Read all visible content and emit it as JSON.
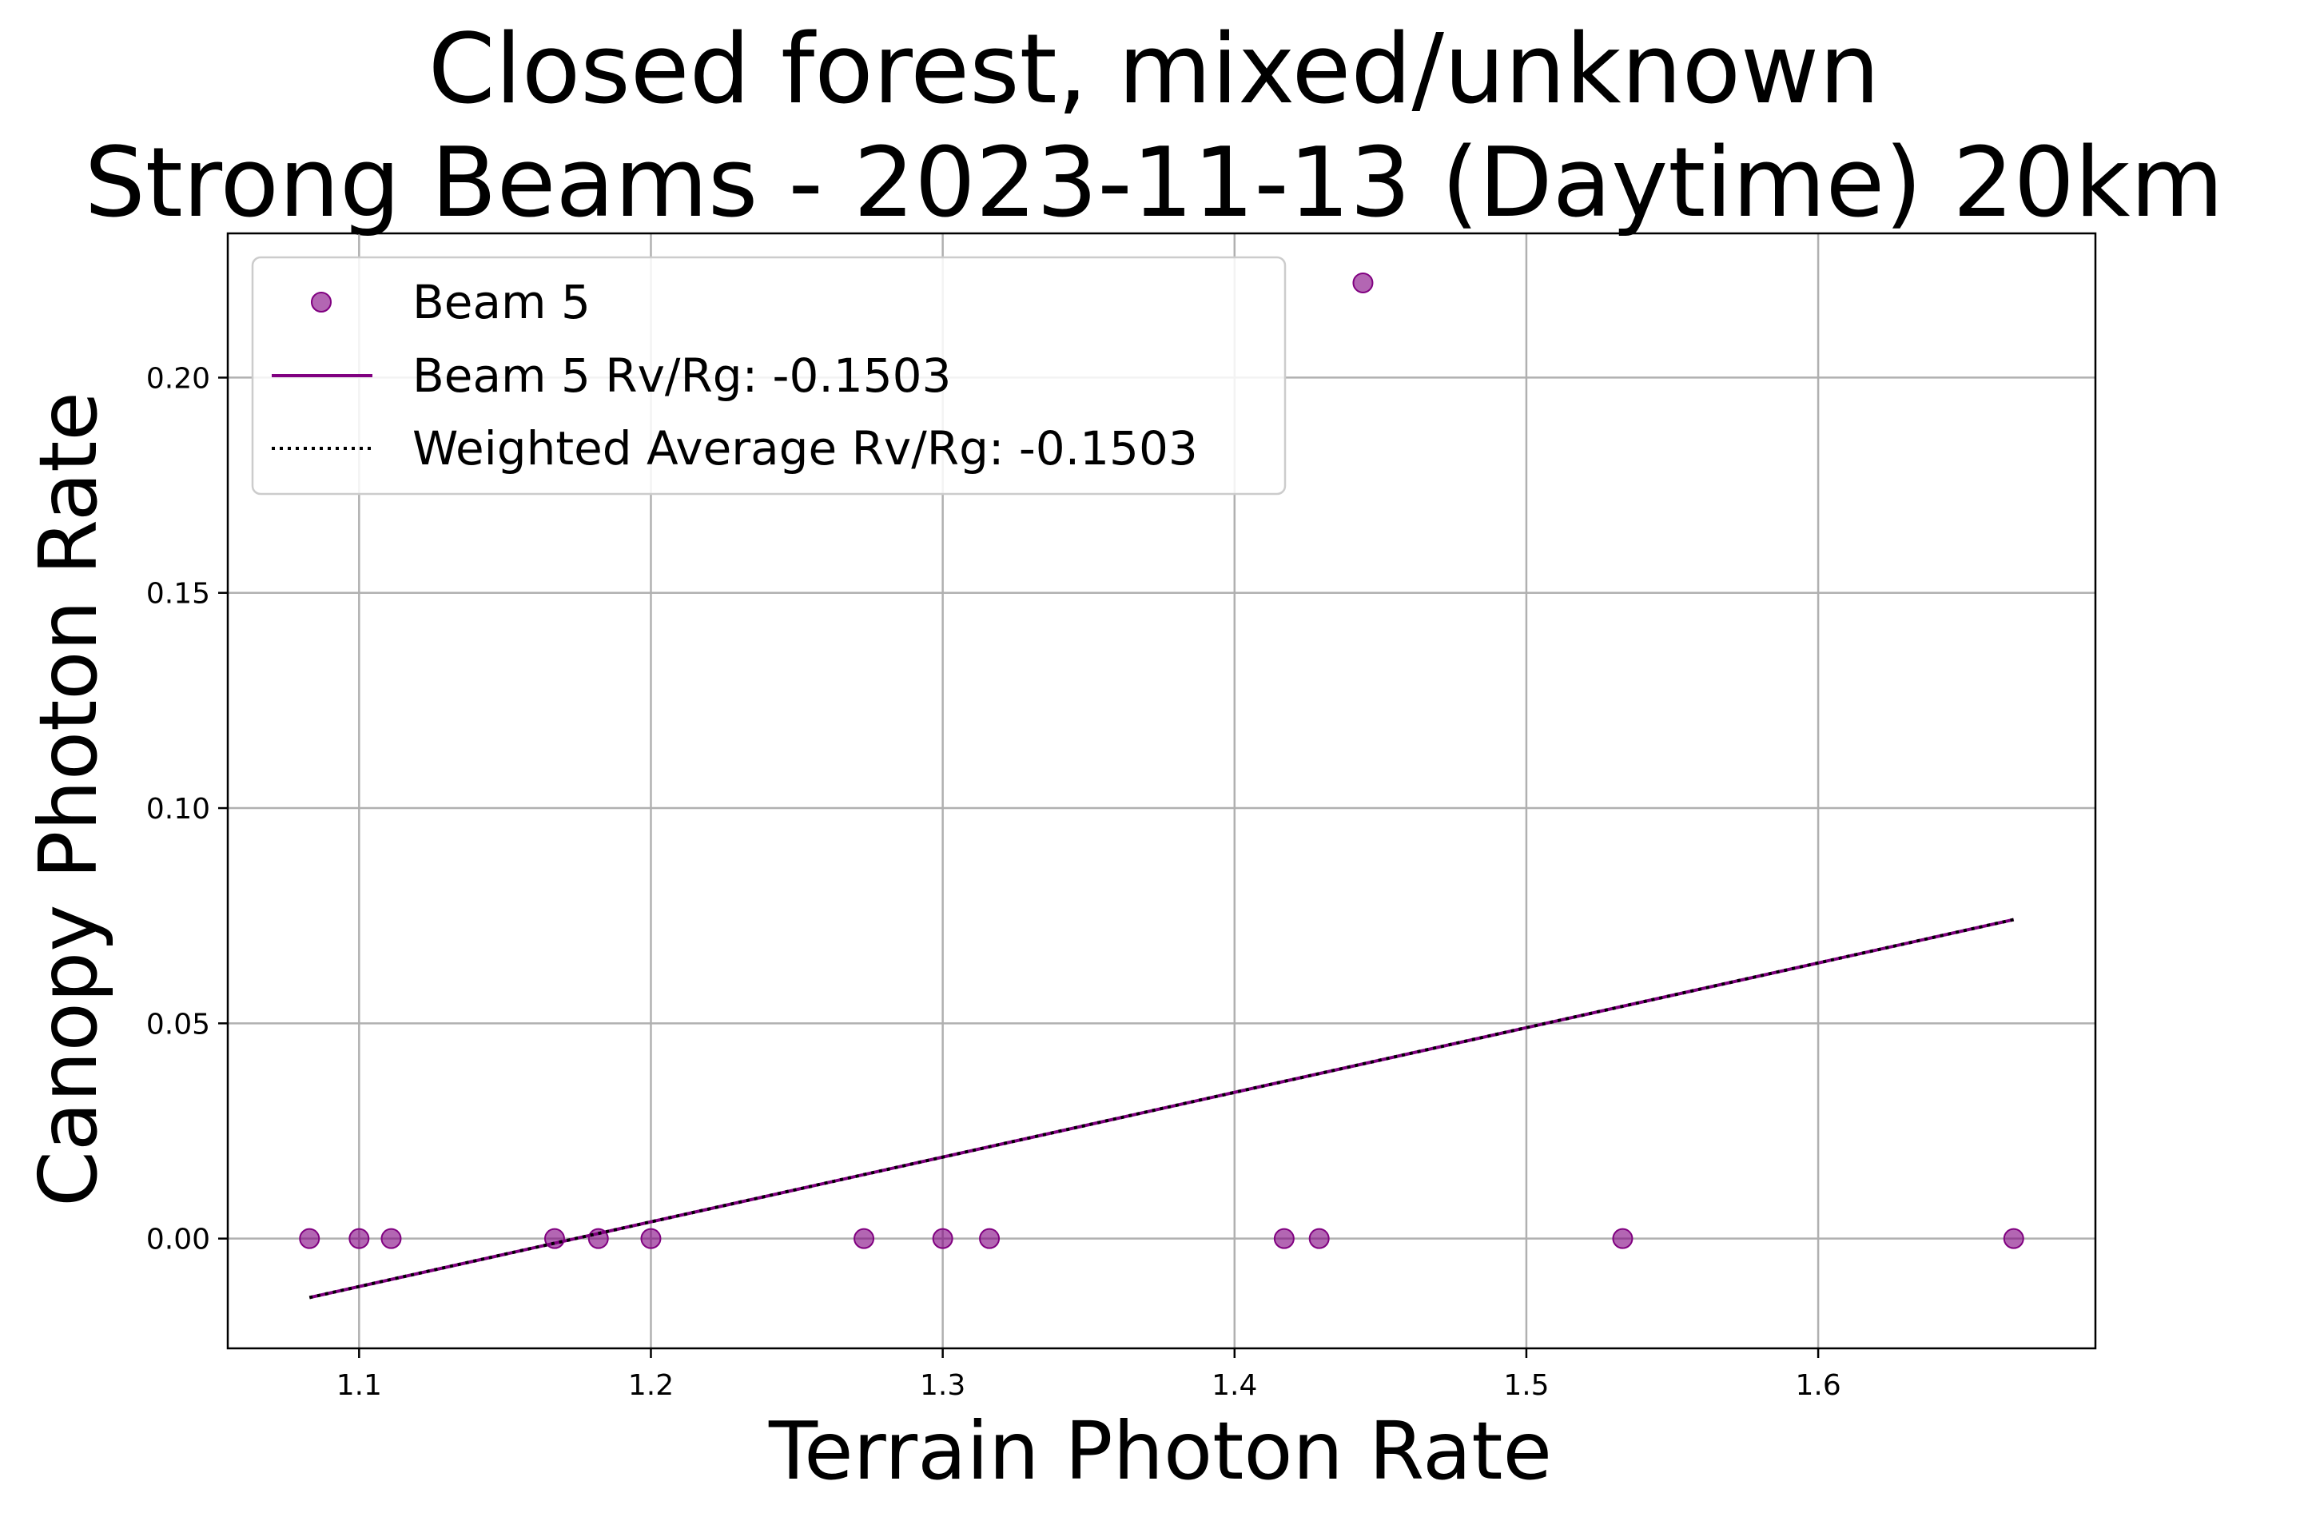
{
  "chart_data": {
    "type": "scatter",
    "title": "Closed forest, mixed/unknown",
    "subtitle": "Strong Beams - 2023-11-13 (Daytime) 20km",
    "xlabel": "Terrain Photon Rate",
    "ylabel": "Canopy Photon Rate",
    "xlim": [
      1.055,
      1.695
    ],
    "ylim": [
      -0.0255,
      0.2335
    ],
    "xticks": [
      {
        "value": 1.1,
        "label": "1.1"
      },
      {
        "value": 1.2,
        "label": "1.2"
      },
      {
        "value": 1.3,
        "label": "1.3"
      },
      {
        "value": 1.4,
        "label": "1.4"
      },
      {
        "value": 1.5,
        "label": "1.5"
      },
      {
        "value": 1.6,
        "label": "1.6"
      }
    ],
    "yticks": [
      {
        "value": 0.0,
        "label": "0.00"
      },
      {
        "value": 0.05,
        "label": "0.05"
      },
      {
        "value": 0.1,
        "label": "0.10"
      },
      {
        "value": 0.15,
        "label": "0.15"
      },
      {
        "value": 0.2,
        "label": "0.20"
      }
    ],
    "grid": true,
    "legend_position": "upper-left",
    "series": [
      {
        "name": "Beam 5",
        "kind": "scatter",
        "color": "#800080",
        "points": [
          {
            "x": 1.083,
            "y": 0.0
          },
          {
            "x": 1.1,
            "y": 0.0
          },
          {
            "x": 1.111,
            "y": 0.0
          },
          {
            "x": 1.167,
            "y": 0.0
          },
          {
            "x": 1.182,
            "y": 0.0
          },
          {
            "x": 1.2,
            "y": 0.0
          },
          {
            "x": 1.273,
            "y": 0.0
          },
          {
            "x": 1.3,
            "y": 0.0
          },
          {
            "x": 1.316,
            "y": 0.0
          },
          {
            "x": 1.417,
            "y": 0.0
          },
          {
            "x": 1.429,
            "y": 0.0
          },
          {
            "x": 1.444,
            "y": 0.222
          },
          {
            "x": 1.533,
            "y": 0.0
          },
          {
            "x": 1.667,
            "y": 0.0
          }
        ]
      },
      {
        "name": "Beam 5 Rv/Rg: -0.1503",
        "kind": "line",
        "color": "#800080",
        "points": [
          {
            "x": 1.083,
            "y": -0.0137
          },
          {
            "x": 1.667,
            "y": 0.0741
          }
        ]
      },
      {
        "name": "Weighted Average Rv/Rg: -0.1503",
        "kind": "dotted-line",
        "color": "#000000",
        "points": [
          {
            "x": 1.083,
            "y": -0.0137
          },
          {
            "x": 1.667,
            "y": 0.0741
          }
        ]
      }
    ]
  }
}
